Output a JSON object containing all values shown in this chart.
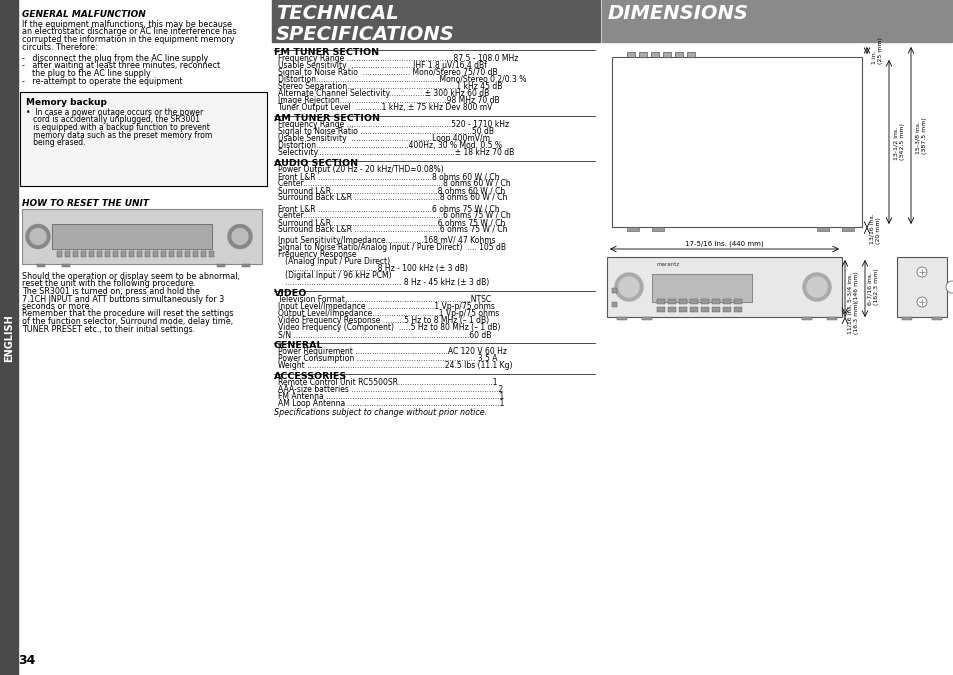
{
  "page_bg": "#ffffff",
  "left_sidebar_color": "#4a4a4a",
  "english_text": "ENGLISH",
  "page_number": "34",
  "left_col": {
    "general_malfunction_title": "GENERAL MALFUNCTION",
    "general_malfunction_body": "If the equipment malfunctions, this may be because\nan electrostatic discharge or AC line interference has\ncorrupted the information in the equipment memory\ncircuits. Therefore:",
    "bullet1": "-   disconnect the plug from the AC line supply",
    "bullet2": "-   after waiting at least three minutes, reconnect\n    the plug to the AC line supply",
    "bullet3": "-   re-attempt to operate the equipment",
    "memory_backup_title": "Memory backup",
    "memory_backup_body": "•  In case a power outage occurs or the power\n   cord is accidentally unplugged, the SR3001\n   is equipped with a backup function to prevent\n   memory data such as the preset memory from\n   being erased.",
    "how_to_reset_title": "HOW TO RESET THE UNIT",
    "how_to_reset_body1": "Should the operation or display seem to be abnormal,\nreset the unit with the following procedure.\nThe SR3001 is turned on, press and hold the\n7.1CH INPUT and ATT buttons simultaneously for 3\nseconds or more.\nRemember that the procedure will reset the settings\nof the function selector, Surround mode, delay time,\nTUNER PRESET etc., to their initial settings."
  },
  "tech_spec": {
    "header_bg": "#5a5a5a",
    "header_text": "TECHNICAL\nSPECIFICATIONS",
    "header_text_color": "#ffffff",
    "sections": [
      {
        "title": "FM TUNER SECTION",
        "lines": [
          "Frequency Range .............................................87.5 - 108.0 MHz",
          "Usable Sensitivity  ..........................IHF 1.8 μV/16.4 dBf",
          "Signal to Noise Ratio  .................... Mono/Stereo 75/70 dB",
          "Distortion....................................................Mono/Stereo 0.2/0.3 %",
          "Stereo Separation..............................................1 kHz 45 dB",
          "Alternate Channel Selectivity...............± 300 kHz 60 dB",
          "Image Rejection.............................................98 MHz 70 dB",
          "Tuner Output Level  ...........1 kHz, ± 75 kHz Dev 800 mV"
        ]
      },
      {
        "title": "AM TUNER SECTION",
        "lines": [
          "Frequency Range ............................................520 - 1710 kHz",
          "Signal to Noise Ratio ...............................................50 dB",
          "Usable Sensitivity  ..................................Loop 400mV/m",
          "Distortion.......................................400Hz, 30 % Mod. 0.5 %",
          "Selectivity..........................................................± 18 kHz 70 dB"
        ]
      },
      {
        "title": "AUDIO SECTION",
        "lines": [
          "Power Output (20 Hz - 20 kHz/THD=0.08%)",
          "Front L&R ................................................8 ohms 60 W / Ch",
          "Center...........................................................8 ohms 60 W / Ch",
          "Surround L&R.............................................8 ohms 60 W / Ch",
          "Surround Back L&R ....................................8 ohms 60 W / Ch",
          "",
          "Front L&R ................................................6 ohms 75 W / Ch",
          "Center...........................................................6 ohms 75 W / Ch",
          "Surround L&R.............................................6 ohms 75 W / Ch",
          "Surround Back L&R ....................................6 ohms 75 W / Ch",
          "",
          "Input Sensitivity/Impedance................168 mV/ 47 Kohms",
          "Signal to Noise Ratio/Analog Input / Pure Direct)  .... 105 dB",
          "Frequency Response",
          "   (Analog Input / Pure Direct)",
          "   .......................................8 Hz - 100 kHz (± 3 dB)",
          "   (Digital Input / 96 kHz PCM)",
          "   ................................................. 8 Hz - 45 kHz (± 3 dB)"
        ]
      },
      {
        "title": "VIDEO",
        "lines": [
          "Television Format.....................................................NTSC",
          "Input Level/Impedance ............................1 Vp-p/75 ohms",
          "Output Level/Impedance............................1 Vp-p/75 ohms",
          "Video Frequency Response .........5 Hz to 8 MHz (– 1 dB)",
          "Video Frequency (Component)  .....5 Hz to 80 MHz (– 1 dB)",
          "S/N ..........................................................................60 dB"
        ]
      },
      {
        "title": "GENERAL",
        "lines": [
          "Power Requirement .......................................AC 120 V 60 Hz",
          "Power Consumption .................................................. 3.5 A",
          "Weight ..........................................................24.5 lbs (11.1 Kg)"
        ]
      },
      {
        "title": "ACCESSORIES",
        "lines": [
          "Remote Control Unit RC5500SR........................................1",
          "AAA-size batteries ..............................................................2",
          "FM Antenna .........................................................................1",
          "AM Loop Antenna ................................................................1"
        ]
      }
    ],
    "footer": "Specifications subject to change without prior notice."
  },
  "dimensions": {
    "header_bg": "#8a8a8a",
    "header_text": "DIMENSIONS",
    "header_text_color": "#ffffff"
  }
}
